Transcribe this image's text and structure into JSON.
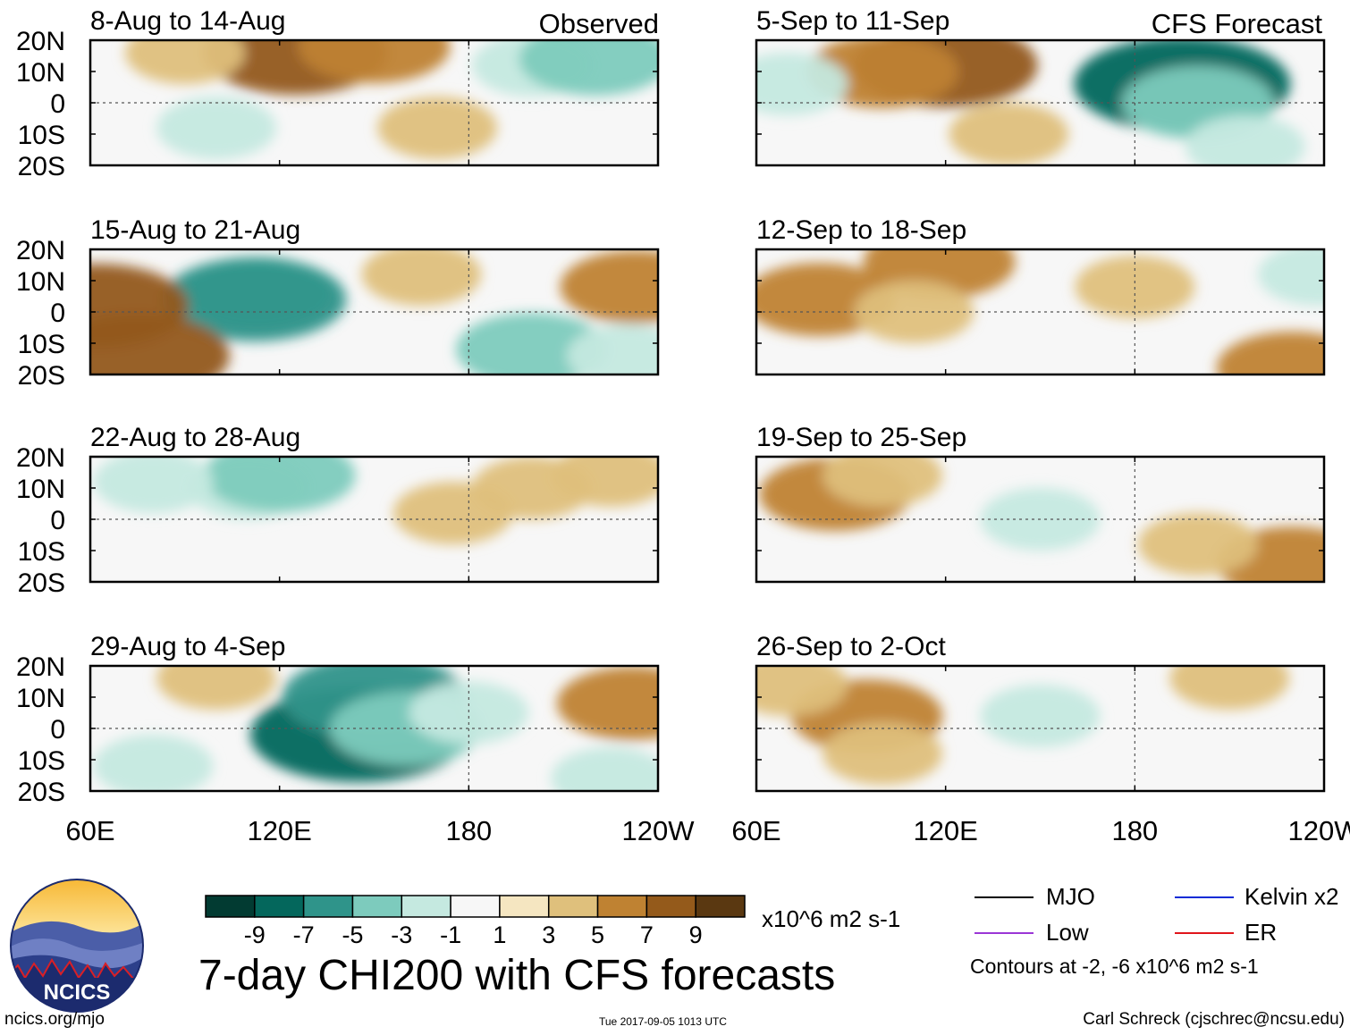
{
  "header": {
    "observed_label": "Observed",
    "forecast_label": "CFS Forecast"
  },
  "panels": [
    {
      "title": "8-Aug to 14-Aug",
      "column": "observed",
      "row": 0
    },
    {
      "title": "15-Aug to 21-Aug",
      "column": "observed",
      "row": 1
    },
    {
      "title": "22-Aug to 28-Aug",
      "column": "observed",
      "row": 2
    },
    {
      "title": "29-Aug to 4-Sep",
      "column": "observed",
      "row": 3
    },
    {
      "title": "5-Sep to 11-Sep",
      "column": "forecast",
      "row": 0
    },
    {
      "title": "12-Sep to 18-Sep",
      "column": "forecast",
      "row": 1
    },
    {
      "title": "19-Sep to 25-Sep",
      "column": "forecast",
      "row": 2
    },
    {
      "title": "26-Sep to 2-Oct",
      "column": "forecast",
      "row": 3
    }
  ],
  "chart_data": {
    "type": "heatmap",
    "title": "7-day CHI200 with CFS forecasts",
    "units": "x10^6 m2 s-1",
    "lat_tick_labels": [
      "20N",
      "10N",
      "0",
      "10S",
      "20S"
    ],
    "lon_tick_labels": [
      "60E",
      "120E",
      "180",
      "120W"
    ],
    "lat_range": [
      -20,
      20
    ],
    "lon_range": [
      60,
      240
    ],
    "colorbar": {
      "tick_labels": [
        "-9",
        "-7",
        "-5",
        "-3",
        "-1",
        "1",
        "3",
        "5",
        "7",
        "9"
      ],
      "colors": [
        "#023b32",
        "#04675c",
        "#2f948a",
        "#7dcbbd",
        "#c5e9e0",
        "#f7f7f7",
        "#f5e6c1",
        "#dfc07c",
        "#bf8232",
        "#945a1b",
        "#5a3811"
      ]
    },
    "contour_note": "Contours at -2, -6 x10^6 m2 s-1",
    "legend": [
      {
        "label": "MJO",
        "color": "#000000"
      },
      {
        "label": "Kelvin x2",
        "color": "#0a2bd6"
      },
      {
        "label": "Low",
        "color": "#9b36d6"
      },
      {
        "label": "ER",
        "color": "#e0151b"
      }
    ],
    "anomaly_blobs": [
      {
        "panel": 0,
        "lon": 125,
        "lat": 16,
        "value": 7
      },
      {
        "panel": 0,
        "lon": 90,
        "lat": 16,
        "value": 3
      },
      {
        "panel": 0,
        "lon": 150,
        "lat": 18,
        "value": 5
      },
      {
        "panel": 0,
        "lon": 100,
        "lat": -8,
        "value": -3
      },
      {
        "panel": 0,
        "lon": 200,
        "lat": 12,
        "value": -3
      },
      {
        "panel": 0,
        "lon": 220,
        "lat": 14,
        "value": -5
      },
      {
        "panel": 0,
        "lon": 170,
        "lat": -8,
        "value": 3
      },
      {
        "panel": 1,
        "lon": 113,
        "lat": 6,
        "value": -5
      },
      {
        "panel": 1,
        "lon": 112,
        "lat": 4,
        "value": -7
      },
      {
        "panel": 1,
        "lon": 75,
        "lat": -14,
        "value": 7
      },
      {
        "panel": 1,
        "lon": 62,
        "lat": 2,
        "value": 7
      },
      {
        "panel": 1,
        "lon": 165,
        "lat": 12,
        "value": 3
      },
      {
        "panel": 1,
        "lon": 200,
        "lat": -12,
        "value": -5
      },
      {
        "panel": 1,
        "lon": 230,
        "lat": -14,
        "value": -3
      },
      {
        "panel": 1,
        "lon": 233,
        "lat": 8,
        "value": 5
      },
      {
        "panel": 2,
        "lon": 110,
        "lat": 10,
        "value": -3
      },
      {
        "panel": 2,
        "lon": 120,
        "lat": 14,
        "value": -5
      },
      {
        "panel": 2,
        "lon": 80,
        "lat": 12,
        "value": -3
      },
      {
        "panel": 2,
        "lon": 175,
        "lat": 2,
        "value": 3
      },
      {
        "panel": 2,
        "lon": 200,
        "lat": 10,
        "value": 3
      },
      {
        "panel": 2,
        "lon": 225,
        "lat": 14,
        "value": 3
      },
      {
        "panel": 3,
        "lon": 145,
        "lat": -2,
        "value": -9
      },
      {
        "panel": 3,
        "lon": 150,
        "lat": 10,
        "value": -7
      },
      {
        "panel": 3,
        "lon": 160,
        "lat": 0,
        "value": -5
      },
      {
        "panel": 3,
        "lon": 180,
        "lat": 5,
        "value": -3
      },
      {
        "panel": 3,
        "lon": 80,
        "lat": -12,
        "value": -3
      },
      {
        "panel": 3,
        "lon": 100,
        "lat": 16,
        "value": 3
      },
      {
        "panel": 3,
        "lon": 232,
        "lat": 8,
        "value": 5
      },
      {
        "panel": 3,
        "lon": 225,
        "lat": -16,
        "value": -3
      },
      {
        "panel": 4,
        "lon": 120,
        "lat": 12,
        "value": 7
      },
      {
        "panel": 4,
        "lon": 100,
        "lat": 10,
        "value": 5
      },
      {
        "panel": 4,
        "lon": 70,
        "lat": 6,
        "value": -3
      },
      {
        "panel": 4,
        "lon": 195,
        "lat": 6,
        "value": -9
      },
      {
        "panel": 4,
        "lon": 200,
        "lat": 0,
        "value": -5
      },
      {
        "panel": 4,
        "lon": 215,
        "lat": -14,
        "value": -3
      },
      {
        "panel": 4,
        "lon": 140,
        "lat": -10,
        "value": 3
      },
      {
        "panel": 5,
        "lon": 80,
        "lat": 4,
        "value": 5
      },
      {
        "panel": 5,
        "lon": 118,
        "lat": 16,
        "value": 5
      },
      {
        "panel": 5,
        "lon": 110,
        "lat": 0,
        "value": 3
      },
      {
        "panel": 5,
        "lon": 230,
        "lat": -18,
        "value": 5
      },
      {
        "panel": 5,
        "lon": 180,
        "lat": 8,
        "value": 3
      },
      {
        "panel": 5,
        "lon": 238,
        "lat": 12,
        "value": -3
      },
      {
        "panel": 6,
        "lon": 85,
        "lat": 8,
        "value": 5
      },
      {
        "panel": 6,
        "lon": 100,
        "lat": 14,
        "value": 3
      },
      {
        "panel": 6,
        "lon": 150,
        "lat": 0,
        "value": -3
      },
      {
        "panel": 6,
        "lon": 230,
        "lat": -14,
        "value": 5
      },
      {
        "panel": 6,
        "lon": 200,
        "lat": -8,
        "value": 3
      },
      {
        "panel": 7,
        "lon": 95,
        "lat": 4,
        "value": 5
      },
      {
        "panel": 7,
        "lon": 100,
        "lat": -8,
        "value": 3
      },
      {
        "panel": 7,
        "lon": 150,
        "lat": 4,
        "value": -3
      },
      {
        "panel": 7,
        "lon": 70,
        "lat": 14,
        "value": 3
      },
      {
        "panel": 7,
        "lon": 210,
        "lat": 16,
        "value": 3
      }
    ]
  },
  "footer": {
    "site": "ncics.org/mjo",
    "timestamp": "Tue 2017-09-05 1013 UTC",
    "author": "Carl Schreck (cjschrec@ncsu.edu)"
  },
  "logo": {
    "text": "NCICS"
  }
}
